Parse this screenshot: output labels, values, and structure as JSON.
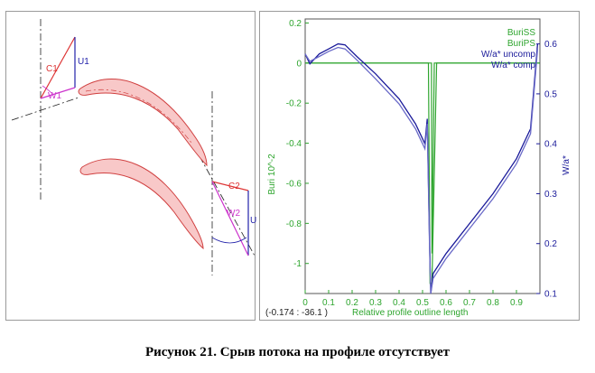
{
  "geometry_view": {
    "labels": {
      "c1": "C1",
      "u1": "U1",
      "w1": "W1",
      "c2": "C2",
      "w2": "W2",
      "u2": "U"
    }
  },
  "chart_data": {
    "type": "line",
    "title": "",
    "xlabel": "Relative profile outline length",
    "ylabel_left": "Buri 10^-2",
    "ylabel_right": "W/a*",
    "xlim": [
      0,
      1
    ],
    "ylim_left": [
      -1.15,
      0.22
    ],
    "ylim_right": [
      0.1,
      0.65
    ],
    "x_ticks": [
      "0",
      "0.1",
      "0.2",
      "0.3",
      "0.4",
      "0.5",
      "0.6",
      "0.7",
      "0.8",
      "0.9"
    ],
    "y_ticks_left": [
      "0.2",
      "0",
      "-0.2",
      "-0.4",
      "-0.6",
      "-0.8",
      "-1"
    ],
    "y_ticks_right": [
      "0.6",
      "0.5",
      "0.4",
      "0.3",
      "0.2",
      "0.1"
    ],
    "grid": false,
    "legend_position": "top-right",
    "cursor_readout": "(-0.174  :  -36.1 )",
    "series": [
      {
        "name": "BuriSS",
        "axis": "left",
        "color": "#2ea52e",
        "x": [
          0,
          0.45,
          0.525,
          0.532,
          0.54,
          0.56,
          1.0
        ],
        "y": [
          0,
          0,
          0,
          -1.1,
          -1.1,
          0,
          0
        ]
      },
      {
        "name": "BuriPS",
        "axis": "left",
        "color": "#2ea52e",
        "x": [
          0,
          0.5,
          0.538,
          0.54,
          0.55,
          1.0
        ],
        "y": [
          0,
          0,
          0,
          -0.95,
          0,
          0
        ]
      },
      {
        "name": "W/a* uncomp",
        "axis": "right",
        "color": "#1a1a9a",
        "x": [
          0,
          0.02,
          0.06,
          0.1,
          0.14,
          0.17,
          0.22,
          0.3,
          0.4,
          0.47,
          0.51,
          0.52,
          0.53,
          0.535,
          0.545,
          0.6,
          0.7,
          0.8,
          0.9,
          0.96,
          0.99
        ],
        "y": [
          0.58,
          0.56,
          0.58,
          0.59,
          0.6,
          0.598,
          0.575,
          0.54,
          0.49,
          0.44,
          0.4,
          0.45,
          0.2,
          0.1,
          0.14,
          0.18,
          0.24,
          0.3,
          0.37,
          0.43,
          0.6
        ]
      },
      {
        "name": "W/a* comp",
        "axis": "right",
        "color": "#6a6ac8",
        "x": [
          0,
          0.02,
          0.06,
          0.1,
          0.14,
          0.17,
          0.22,
          0.3,
          0.4,
          0.47,
          0.51,
          0.52,
          0.53,
          0.535,
          0.545,
          0.6,
          0.7,
          0.8,
          0.9,
          0.96,
          0.99
        ],
        "y": [
          0.58,
          0.565,
          0.575,
          0.585,
          0.593,
          0.59,
          0.568,
          0.53,
          0.48,
          0.43,
          0.39,
          0.44,
          0.19,
          0.1,
          0.13,
          0.17,
          0.23,
          0.29,
          0.36,
          0.42,
          0.59
        ]
      }
    ]
  },
  "caption": "Рисунок 21. Срыв потока на профиле отсутствует",
  "colors": {
    "blade_fill": "#f8c8c8",
    "blade_stroke": "#d04040",
    "green": "#2ea52e",
    "navy": "#1a1a9a",
    "light_navy": "#6a6ac8",
    "magenta": "#cc33cc",
    "red": "#dd3333",
    "blue": "#2222aa"
  }
}
